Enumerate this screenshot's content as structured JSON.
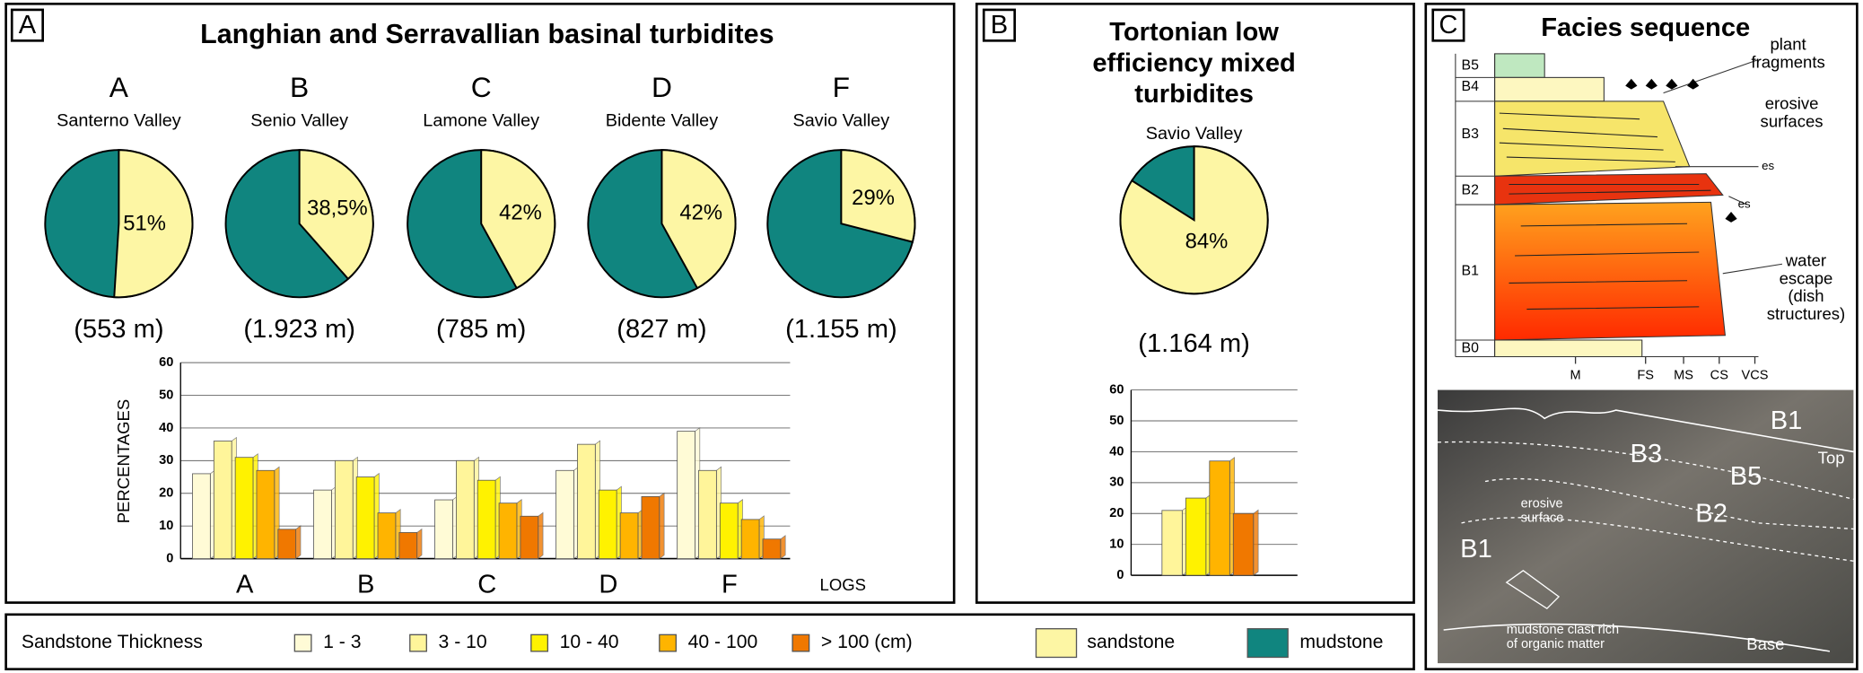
{
  "panel_a": {
    "tag": "A",
    "title": "Langhian and Serravallian basinal turbidites",
    "pies": [
      {
        "letter": "A",
        "location": "Santerno Valley",
        "sandstone": 51,
        "label": "51%",
        "thickness": "(553 m)"
      },
      {
        "letter": "B",
        "location": "Senio Valley",
        "sandstone": 38.5,
        "label": "38,5%",
        "thickness": "(1.923 m)"
      },
      {
        "letter": "C",
        "location": "Lamone Valley",
        "sandstone": 42,
        "label": "42%",
        "thickness": "(785 m)"
      },
      {
        "letter": "D",
        "location": "Bidente Valley",
        "sandstone": 42,
        "label": "42%",
        "thickness": "(827 m)"
      },
      {
        "letter": "F",
        "location": "Savio Valley",
        "sandstone": 29,
        "label": "29%",
        "thickness": "(1.155 m)"
      }
    ],
    "bar_chart": {
      "type": "bar",
      "y_label": "PERCENTAGES",
      "x_label": "LOGS",
      "categories": [
        "A",
        "B",
        "C",
        "D",
        "F"
      ],
      "ylim": [
        0,
        60
      ],
      "yticks": [
        0,
        10,
        20,
        30,
        40,
        50,
        60
      ],
      "series": [
        {
          "name": "1 - 3",
          "color": "#fffbd6",
          "values": [
            26,
            21,
            18,
            27,
            39
          ]
        },
        {
          "name": "3 - 10",
          "color": "#fff59a",
          "values": [
            36,
            30,
            30,
            35,
            27
          ]
        },
        {
          "name": "10 - 40",
          "color": "#fff200",
          "values": [
            31,
            25,
            24,
            21,
            17
          ]
        },
        {
          "name": "40 - 100",
          "color": "#ffb400",
          "values": [
            27,
            14,
            17,
            14,
            12
          ]
        },
        {
          "name": "> 100 (cm)",
          "color": "#f07800",
          "values": [
            9,
            8,
            13,
            19,
            6
          ]
        }
      ]
    }
  },
  "panel_b": {
    "tag": "B",
    "title_lines": [
      "Tortonian low",
      "efficiency mixed",
      "turbidites"
    ],
    "pie": {
      "location": "Savio Valley",
      "sandstone": 84,
      "label": "84%",
      "thickness": "(1.164 m)"
    },
    "bar_chart": {
      "type": "bar",
      "ylim": [
        0,
        60
      ],
      "yticks": [
        0,
        10,
        20,
        30,
        40,
        50,
        60
      ],
      "values": [
        21,
        25,
        37,
        20
      ],
      "colors": [
        "#fff59a",
        "#fff200",
        "#ffb400",
        "#f07800"
      ]
    }
  },
  "legend": {
    "title": "Sandstone Thickness",
    "sandstone": {
      "label": "sandstone",
      "color": "#fdf6a4"
    },
    "mudstone": {
      "label": "mudstone",
      "color": "#10857f"
    }
  },
  "panel_c": {
    "tag": "C",
    "title": "Facies sequence",
    "units": [
      "B5",
      "B4",
      "B3",
      "B2",
      "B1",
      "B0"
    ],
    "annotations": [
      [
        "plant",
        "fragments"
      ],
      [
        "erosive",
        "surfaces"
      ],
      [
        "es"
      ],
      [
        "es"
      ],
      [
        "water",
        "escape",
        "(dish",
        "structures)"
      ]
    ],
    "grain_sizes": [
      "M",
      "FS",
      "MS",
      "CS",
      "VCS"
    ],
    "photo_labels": [
      [
        "B1"
      ],
      [
        "B3"
      ],
      [
        "B5"
      ],
      [
        "Top"
      ],
      [
        "B2"
      ],
      [
        "erosive",
        "surface"
      ],
      [
        "B1"
      ],
      [
        "mudstone clast rich",
        "of organic matter"
      ],
      [
        "Base"
      ]
    ]
  }
}
